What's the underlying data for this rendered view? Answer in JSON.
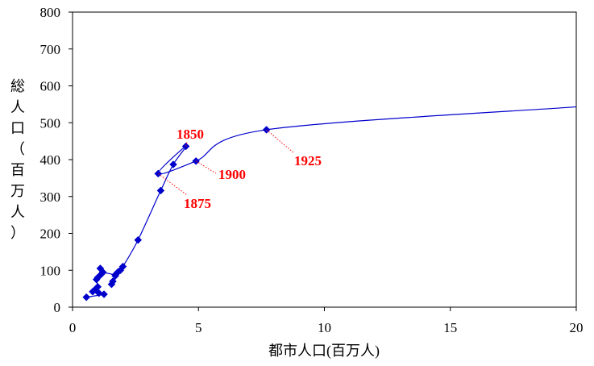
{
  "chart_data": {
    "type": "scatter",
    "title": "",
    "xlabel": "都市人口(百万人)",
    "ylabel": "総人口（百万人）",
    "xlim": [
      0,
      20
    ],
    "ylim": [
      0,
      800
    ],
    "x_ticks": [
      0,
      5,
      10,
      15,
      20
    ],
    "y_ticks": [
      0,
      100,
      200,
      300,
      400,
      500,
      600,
      700,
      800
    ],
    "x_tick_labels": [
      "0",
      "5",
      "10",
      "15",
      "20"
    ],
    "y_tick_labels": [
      "0",
      "100",
      "200",
      "300",
      "400",
      "500",
      "600",
      "700",
      "800"
    ],
    "grid": false,
    "legend": "none",
    "series": [
      {
        "color": "#0000cc",
        "marker": "diamond",
        "smooth": true,
        "points": [
          [
            20,
            543
          ],
          [
            7.7,
            481
          ],
          [
            4.9,
            396
          ],
          [
            3.4,
            362
          ],
          [
            4.5,
            436
          ],
          [
            4.0,
            387
          ],
          [
            3.5,
            316
          ],
          [
            2.6,
            182
          ],
          [
            2.0,
            110
          ],
          [
            1.9,
            100
          ],
          [
            1.8,
            95
          ],
          [
            1.7,
            88
          ],
          [
            1.6,
            70
          ],
          [
            1.55,
            62
          ],
          [
            1.7,
            85
          ],
          [
            1.2,
            95
          ],
          [
            1.1,
            105
          ],
          [
            1.15,
            90
          ],
          [
            1.0,
            80
          ],
          [
            0.95,
            75
          ],
          [
            1.0,
            55
          ],
          [
            0.9,
            48
          ],
          [
            0.8,
            42
          ],
          [
            1.05,
            38
          ],
          [
            1.25,
            35
          ],
          [
            0.55,
            27
          ]
        ]
      }
    ],
    "annotations": [
      {
        "label": "1850",
        "x": 4.5,
        "y": 436,
        "color": "#ff0000"
      },
      {
        "label": "1875",
        "x": 3.4,
        "y": 362,
        "color": "#ff0000"
      },
      {
        "label": "1900",
        "x": 4.9,
        "y": 396,
        "color": "#ff0000"
      },
      {
        "label": "1925",
        "x": 7.7,
        "y": 481,
        "color": "#ff0000"
      }
    ]
  }
}
